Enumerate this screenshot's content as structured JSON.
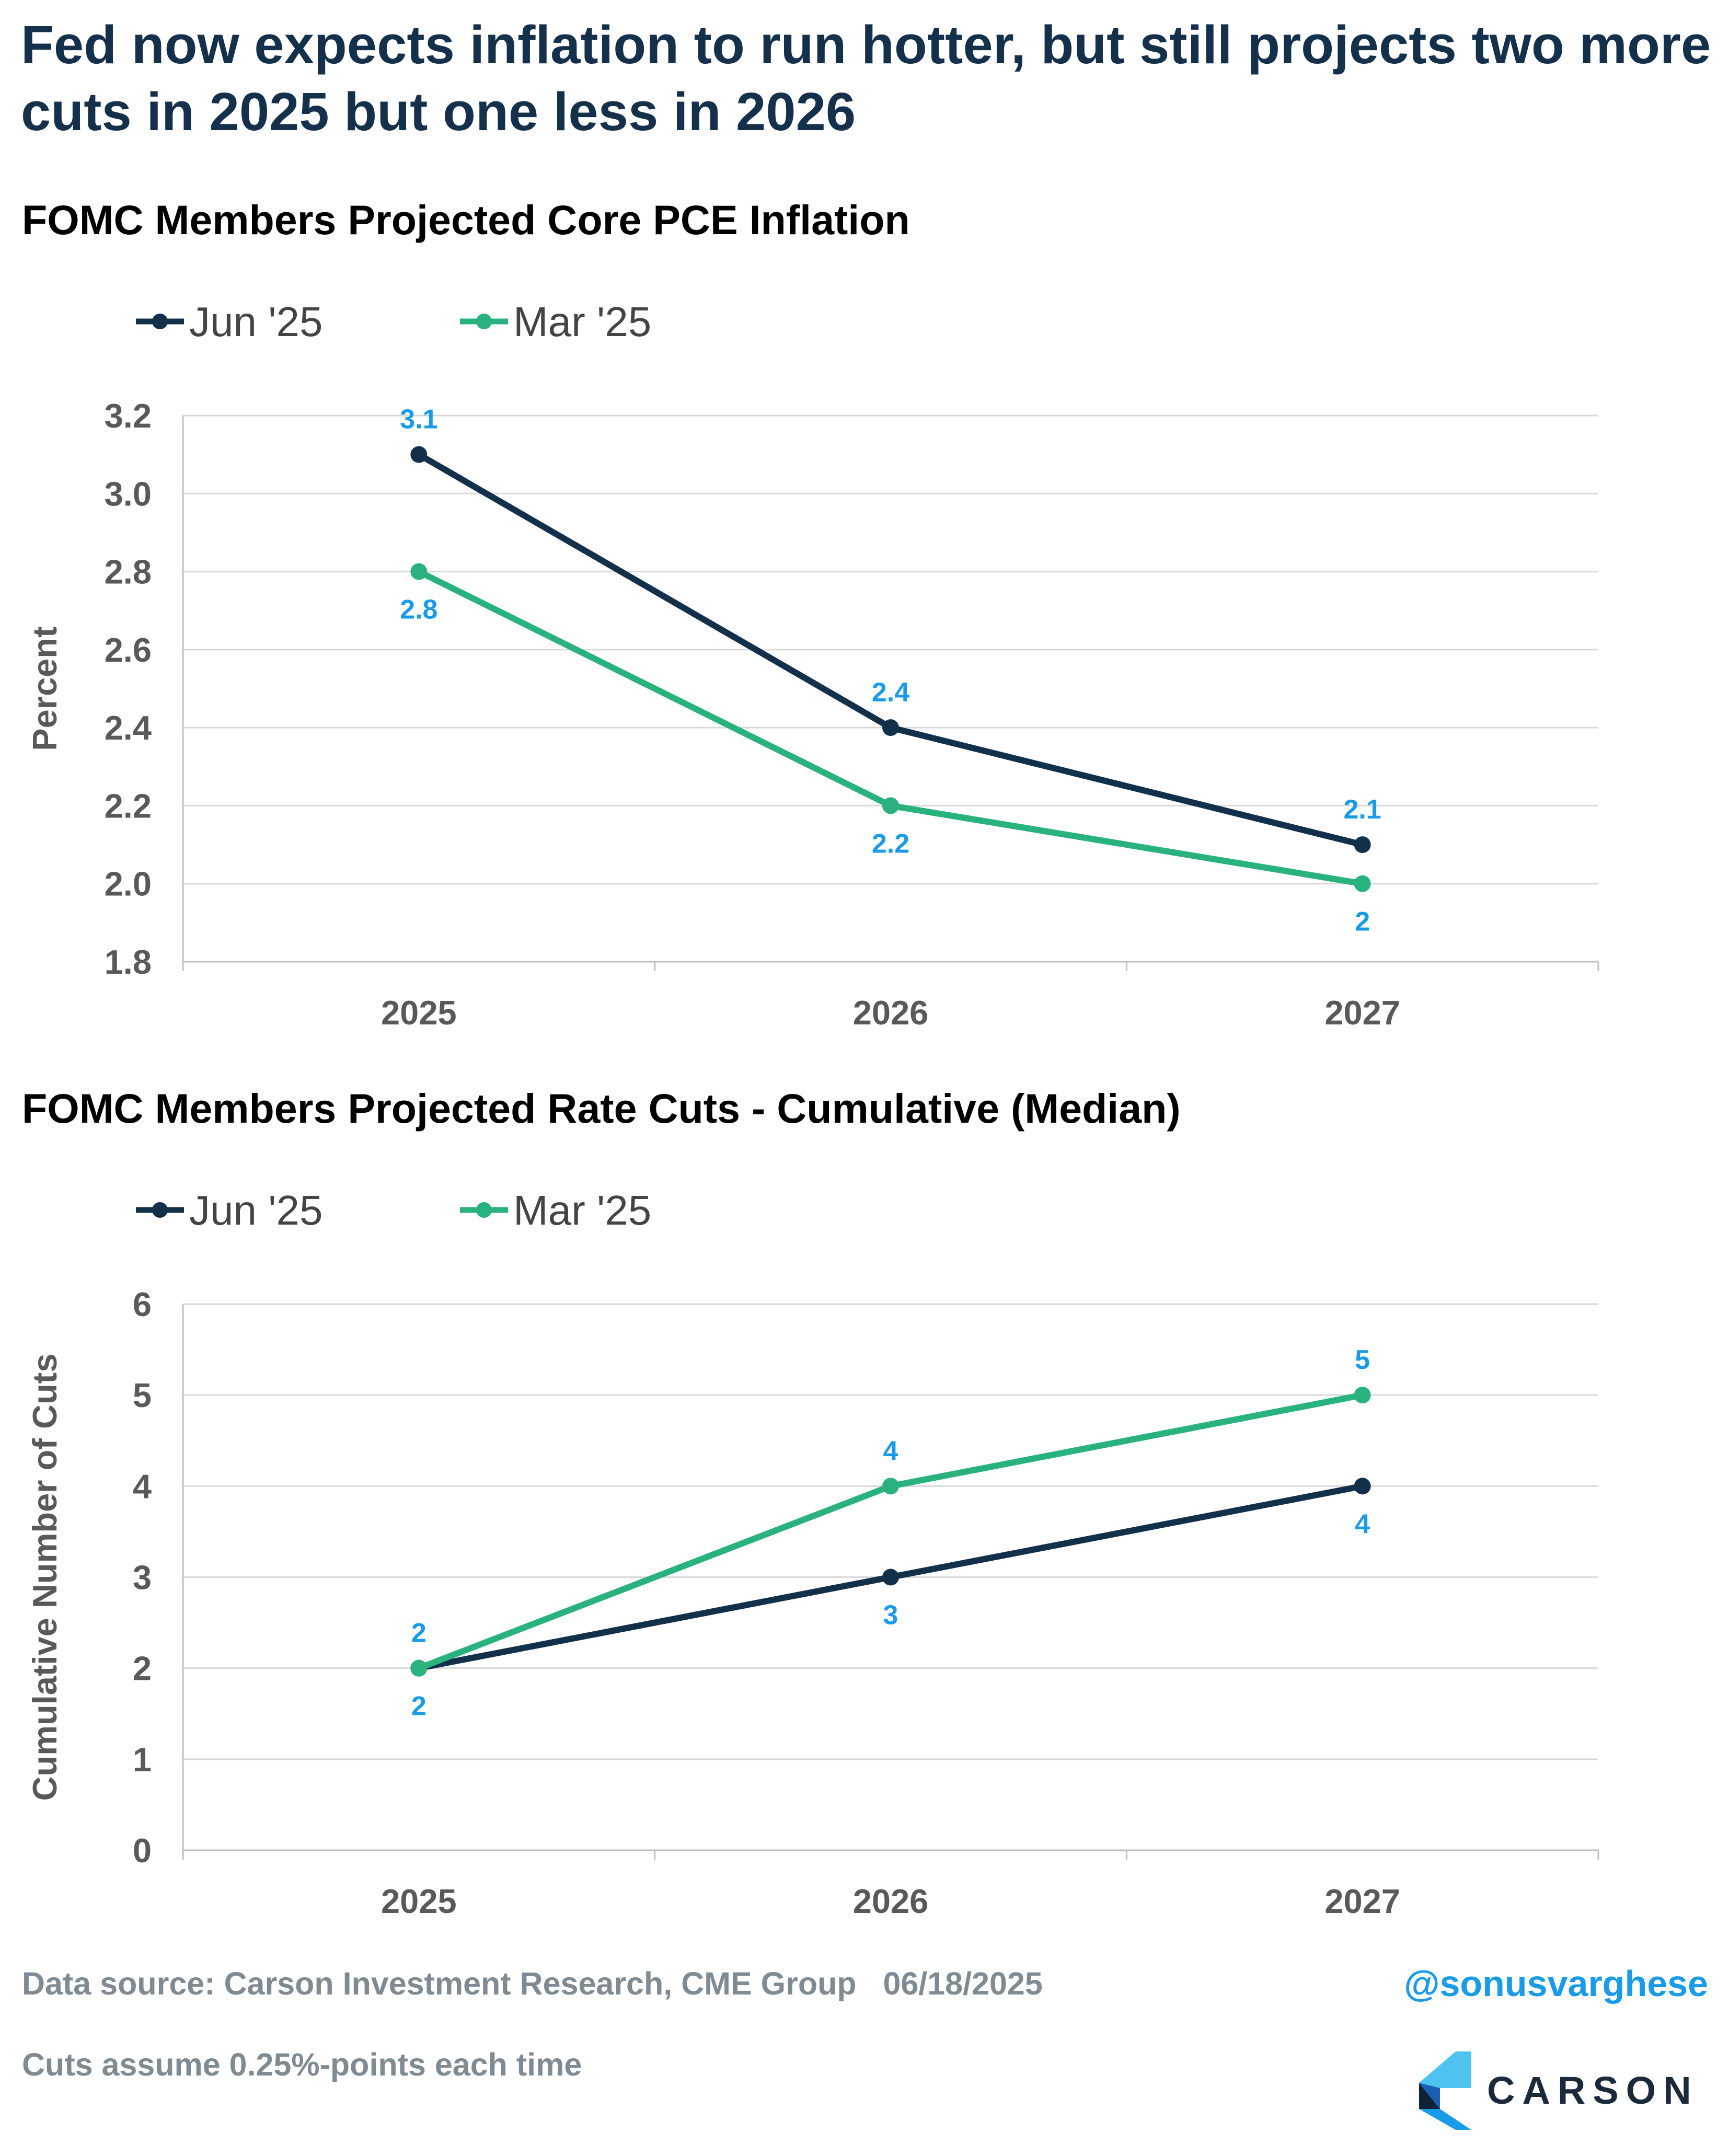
{
  "title": "Fed now expects inflation to run hotter, but still projects two more cuts in 2025 but one less in 2026",
  "colors": {
    "jun": "#13304b",
    "mar": "#2ab27e",
    "label": "#1a9be8",
    "grid": "#d9d9d9"
  },
  "chart_data": [
    {
      "type": "line",
      "title": "FOMC Members Projected Core PCE Inflation",
      "xlabel": "",
      "ylabel": "Percent",
      "categories": [
        "2025",
        "2026",
        "2027"
      ],
      "ylim": [
        1.8,
        3.2
      ],
      "yticks": [
        "1.8",
        "2.0",
        "2.2",
        "2.4",
        "2.6",
        "2.8",
        "3.0",
        "3.2"
      ],
      "grid": "horizontal",
      "legend_position": "top-left",
      "series": [
        {
          "name": "Jun '25",
          "color_key": "jun",
          "values": [
            3.1,
            2.4,
            2.1
          ],
          "labels": [
            "3.1",
            "2.4",
            "2.1"
          ],
          "label_side": [
            "above",
            "above",
            "above"
          ]
        },
        {
          "name": "Mar '25",
          "color_key": "mar",
          "values": [
            2.8,
            2.2,
            2.0
          ],
          "labels": [
            "2.8",
            "2.2",
            "2"
          ],
          "label_side": [
            "below",
            "below",
            "below"
          ]
        }
      ]
    },
    {
      "type": "line",
      "title": "FOMC Members Projected Rate Cuts - Cumulative (Median)",
      "xlabel": "",
      "ylabel": "Cumulative Number of Cuts",
      "categories": [
        "2025",
        "2026",
        "2027"
      ],
      "ylim": [
        0,
        6
      ],
      "yticks": [
        "0",
        "1",
        "2",
        "3",
        "4",
        "5",
        "6"
      ],
      "grid": "horizontal",
      "legend_position": "top-left",
      "series": [
        {
          "name": "Jun '25",
          "color_key": "jun",
          "values": [
            2,
            3,
            4
          ],
          "labels": [
            "2",
            "3",
            "4"
          ],
          "label_side": [
            "below",
            "below",
            "below"
          ]
        },
        {
          "name": "Mar '25",
          "color_key": "mar",
          "values": [
            2,
            4,
            5
          ],
          "labels": [
            "2",
            "4",
            "5"
          ],
          "label_side": [
            "above",
            "above",
            "above"
          ]
        }
      ]
    }
  ],
  "footer": {
    "source": "Data source: Carson Investment Research, CME Group   06/18/2025",
    "note": "Cuts assume 0.25%-points each time",
    "handle": "@sonusvarghese",
    "brand": "CARSON"
  }
}
